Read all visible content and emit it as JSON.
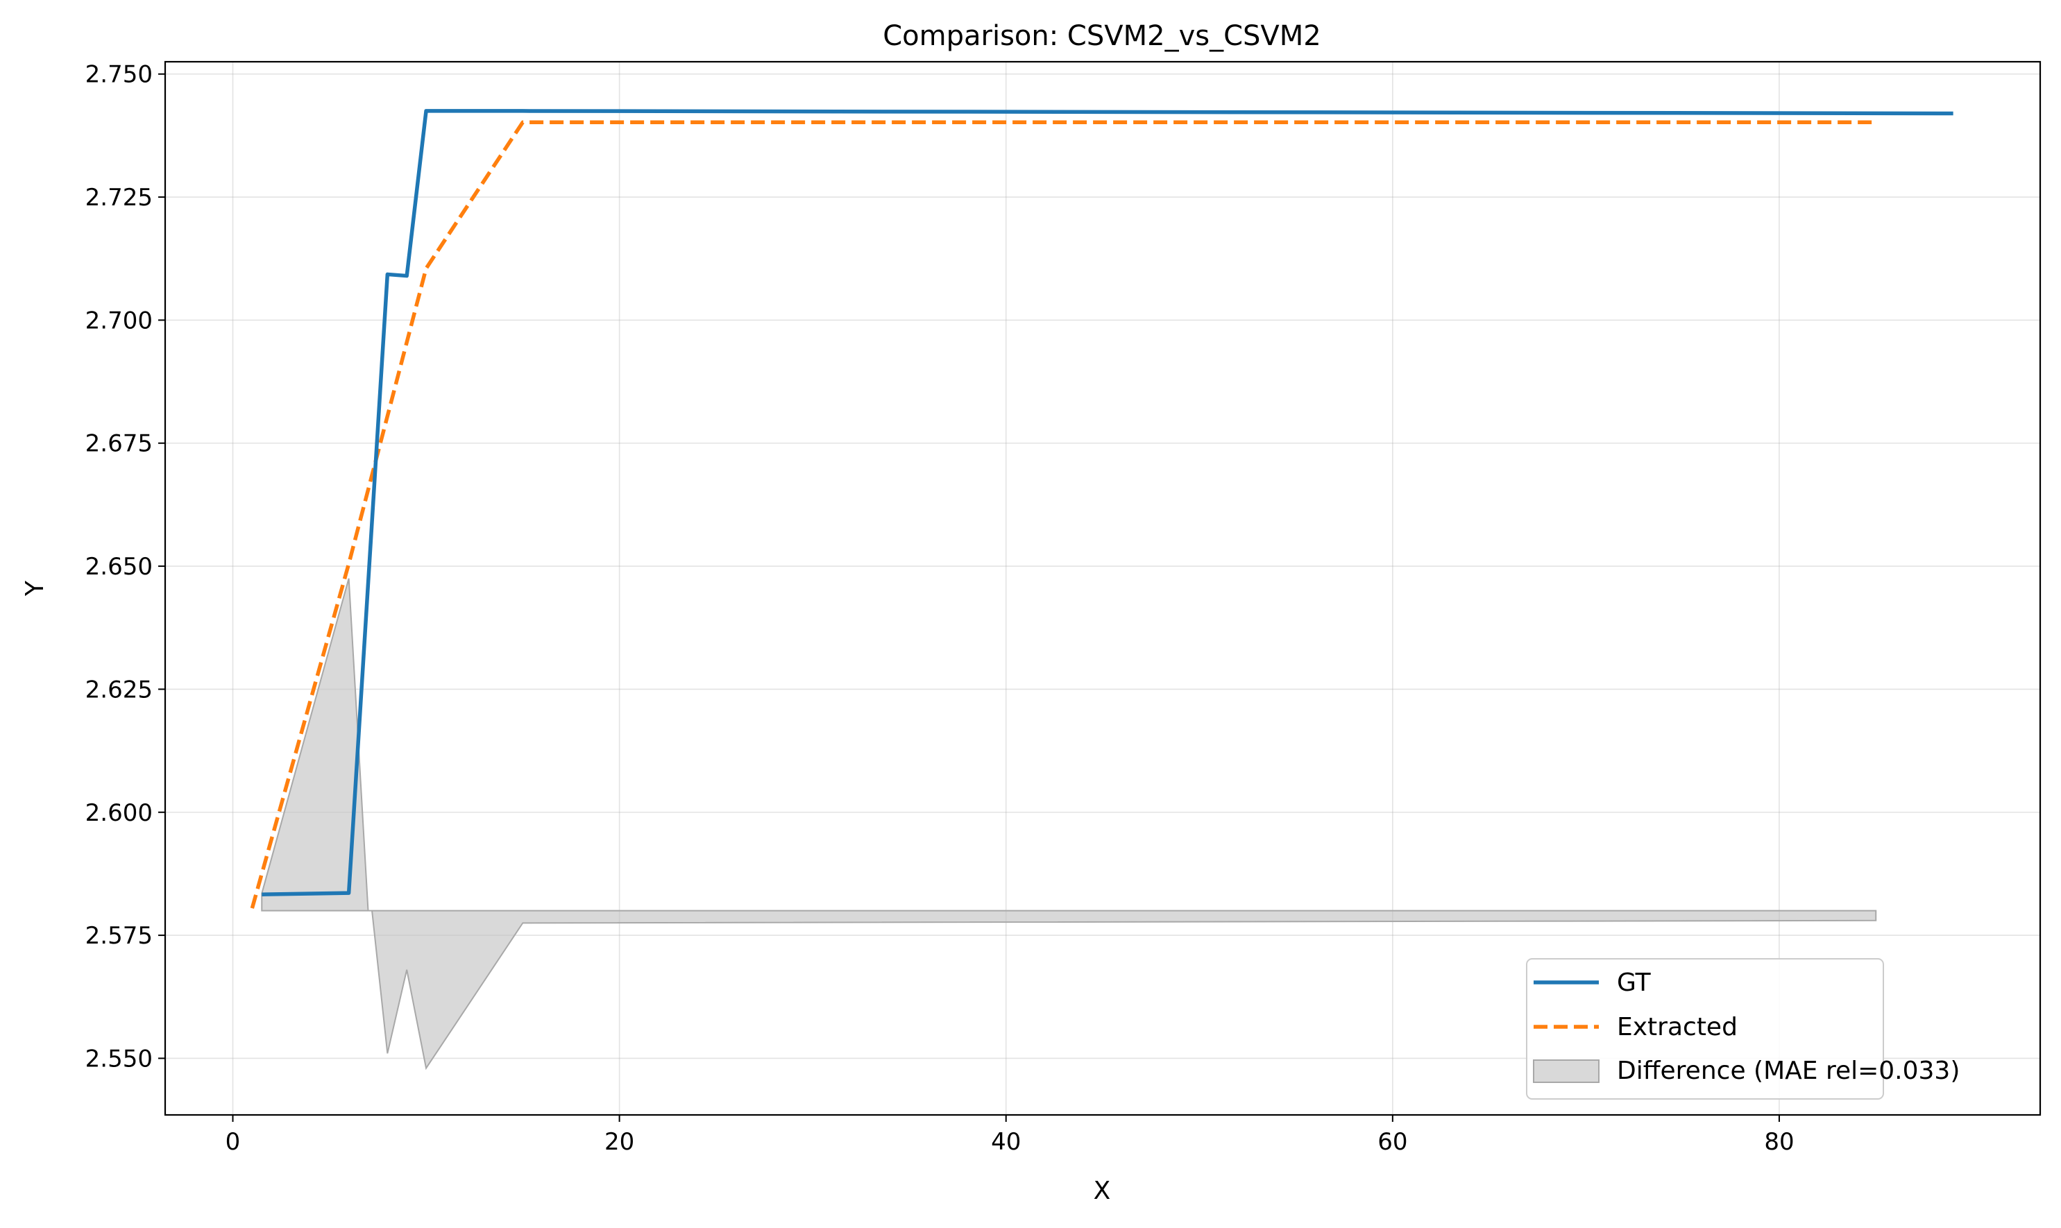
{
  "chart_data": {
    "type": "line",
    "title": "Comparison: CSVM2_vs_CSVM2",
    "xlabel": "X",
    "ylabel": "Y",
    "xlim": [
      -3.5,
      93.5
    ],
    "ylim": [
      2.5385,
      2.7525
    ],
    "xticks": [
      0,
      20,
      40,
      60,
      80
    ],
    "xtick_labels": [
      "0",
      "20",
      "40",
      "60",
      "80"
    ],
    "yticks": [
      2.55,
      2.575,
      2.6,
      2.625,
      2.65,
      2.675,
      2.7,
      2.725,
      2.75
    ],
    "ytick_labels": [
      "2.550",
      "2.575",
      "2.600",
      "2.625",
      "2.650",
      "2.675",
      "2.700",
      "2.725",
      "2.750"
    ],
    "grid": true,
    "legend_position": "lower-right",
    "series": [
      {
        "name": "GT",
        "style": "solid",
        "color": "#1f77b4",
        "x": [
          1.5,
          6,
          8,
          9,
          10,
          15,
          89
        ],
        "y": [
          2.5833,
          2.5836,
          2.7093,
          2.709,
          2.7425,
          2.7425,
          2.742
        ]
      },
      {
        "name": "Extracted",
        "style": "dashed",
        "color": "#ff7f0e",
        "x": [
          1,
          6,
          10,
          15,
          85
        ],
        "y": [
          2.5805,
          2.6505,
          2.7105,
          2.7402,
          2.7402
        ]
      },
      {
        "name": "Difference (MAE rel=0.033)",
        "style": "fill",
        "color": "#bfbfbf",
        "baseline": 2.58,
        "x": [
          1.5,
          6,
          7,
          7.2,
          8,
          9,
          10,
          15,
          85
        ],
        "y": [
          2.5835,
          2.6475,
          2.58,
          2.58,
          2.551,
          2.568,
          2.548,
          2.5775,
          2.578
        ]
      }
    ]
  }
}
